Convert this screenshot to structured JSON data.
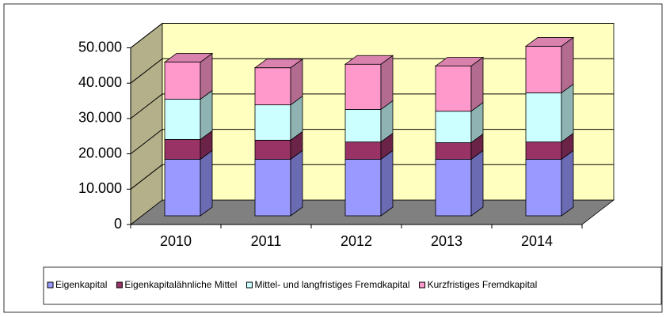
{
  "chart_data": {
    "type": "bar3d_stacked",
    "categories": [
      "2010",
      "2011",
      "2012",
      "2013",
      "2014"
    ],
    "series": [
      {
        "name": "Eigenkapital",
        "color": "#9999ff",
        "values": [
          16000,
          16000,
          16000,
          16000,
          16000
        ]
      },
      {
        "name": "Eigenkapitalähnliche Mittel",
        "color": "#993366",
        "values": [
          5600,
          5400,
          4900,
          4700,
          4900
        ]
      },
      {
        "name": "Mittel- und langfristiges Fremdkapital",
        "color": "#ccffff",
        "values": [
          11400,
          10000,
          9200,
          8900,
          13900
        ]
      },
      {
        "name": "Kurzfristiges Fremdkapital",
        "color": "#ff99cc",
        "values": [
          10500,
          10500,
          12800,
          12800,
          13200
        ]
      }
    ],
    "ylim": [
      0,
      50000
    ],
    "yticks": [
      0,
      {
        "value": 10000,
        "label": "10.000"
      },
      {
        "value": 20000,
        "label": "20.000"
      },
      {
        "value": 30000,
        "label": "30.000"
      },
      {
        "value": 40000,
        "label": "40.000"
      },
      {
        "value": 50000,
        "label": "50.000"
      }
    ],
    "grid": true,
    "legend": "bottom"
  }
}
